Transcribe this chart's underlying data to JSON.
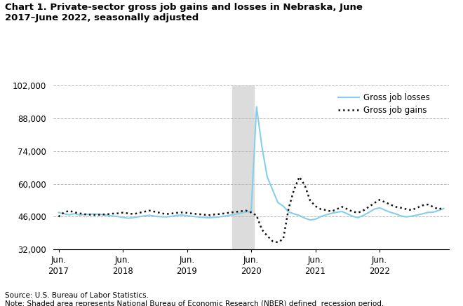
{
  "title": "Chart 1. Private-sector gross job gains and losses in Nebraska, June\n2017–June 2022, seasonally adjusted",
  "source_text": "Source: U.S. Bureau of Labor Statistics.",
  "note_text": "Note: Shaded area represents National Bureau of Economic Research (NBER) defined  recession period.",
  "legend_losses": "Gross job losses",
  "legend_gains": "Gross job gains",
  "losses_color": "#87CEEB",
  "gains_color": "#111111",
  "recession_color": "#DCDCDC",
  "recession_start": 32.5,
  "recession_end": 36.5,
  "ylim": [
    32000,
    102000
  ],
  "yticks": [
    32000,
    46000,
    60000,
    74000,
    88000,
    102000
  ],
  "ytick_labels": [
    "32,000",
    "46,000",
    "60,000",
    "74,000",
    "88,000",
    "102,000"
  ],
  "xtick_positions": [
    0,
    12,
    24,
    36,
    48,
    60
  ],
  "xtick_labels": [
    "Jun.\n2017",
    "Jun.\n2018",
    "Jun.\n2019",
    "Jun.\n2020",
    "Jun.\n2021",
    "Jun.\n2022"
  ],
  "gross_job_losses": [
    47800,
    47200,
    46800,
    47300,
    46700,
    46900,
    47100,
    47100,
    46900,
    46600,
    46300,
    46100,
    45700,
    45300,
    45600,
    46000,
    46300,
    46600,
    46200,
    46000,
    45900,
    46100,
    46500,
    46700,
    46400,
    46100,
    45900,
    45700,
    45500,
    45700,
    45900,
    46200,
    46600,
    47000,
    47500,
    48000,
    48200,
    93000,
    76000,
    63000,
    57500,
    52000,
    50500,
    48000,
    47200,
    46500,
    45400,
    44600,
    44900,
    46000,
    46800,
    47400,
    47900,
    48200,
    47200,
    46100,
    45600,
    46600,
    47800,
    49200,
    49800,
    48800,
    47900,
    47200,
    46300,
    45900,
    46200,
    46700,
    47200,
    47800,
    47900,
    48600,
    49500
  ],
  "gross_job_gains": [
    46000,
    47800,
    48500,
    47800,
    47400,
    47000,
    46800,
    46700,
    46900,
    47000,
    47300,
    47400,
    47700,
    47400,
    47100,
    47600,
    48100,
    48600,
    48100,
    47600,
    47100,
    47300,
    47600,
    47800,
    47600,
    47300,
    47100,
    46900,
    46600,
    46900,
    47100,
    47400,
    47700,
    48000,
    48300,
    48600,
    47800,
    46500,
    40500,
    37800,
    35500,
    35000,
    36500,
    49500,
    57500,
    63000,
    59500,
    53000,
    50500,
    49200,
    48800,
    48200,
    49200,
    50200,
    49200,
    48100,
    47700,
    48700,
    50200,
    51800,
    53200,
    52200,
    51200,
    50200,
    49800,
    49200,
    48800,
    49800,
    50800,
    51200,
    50200,
    49200,
    49800
  ]
}
